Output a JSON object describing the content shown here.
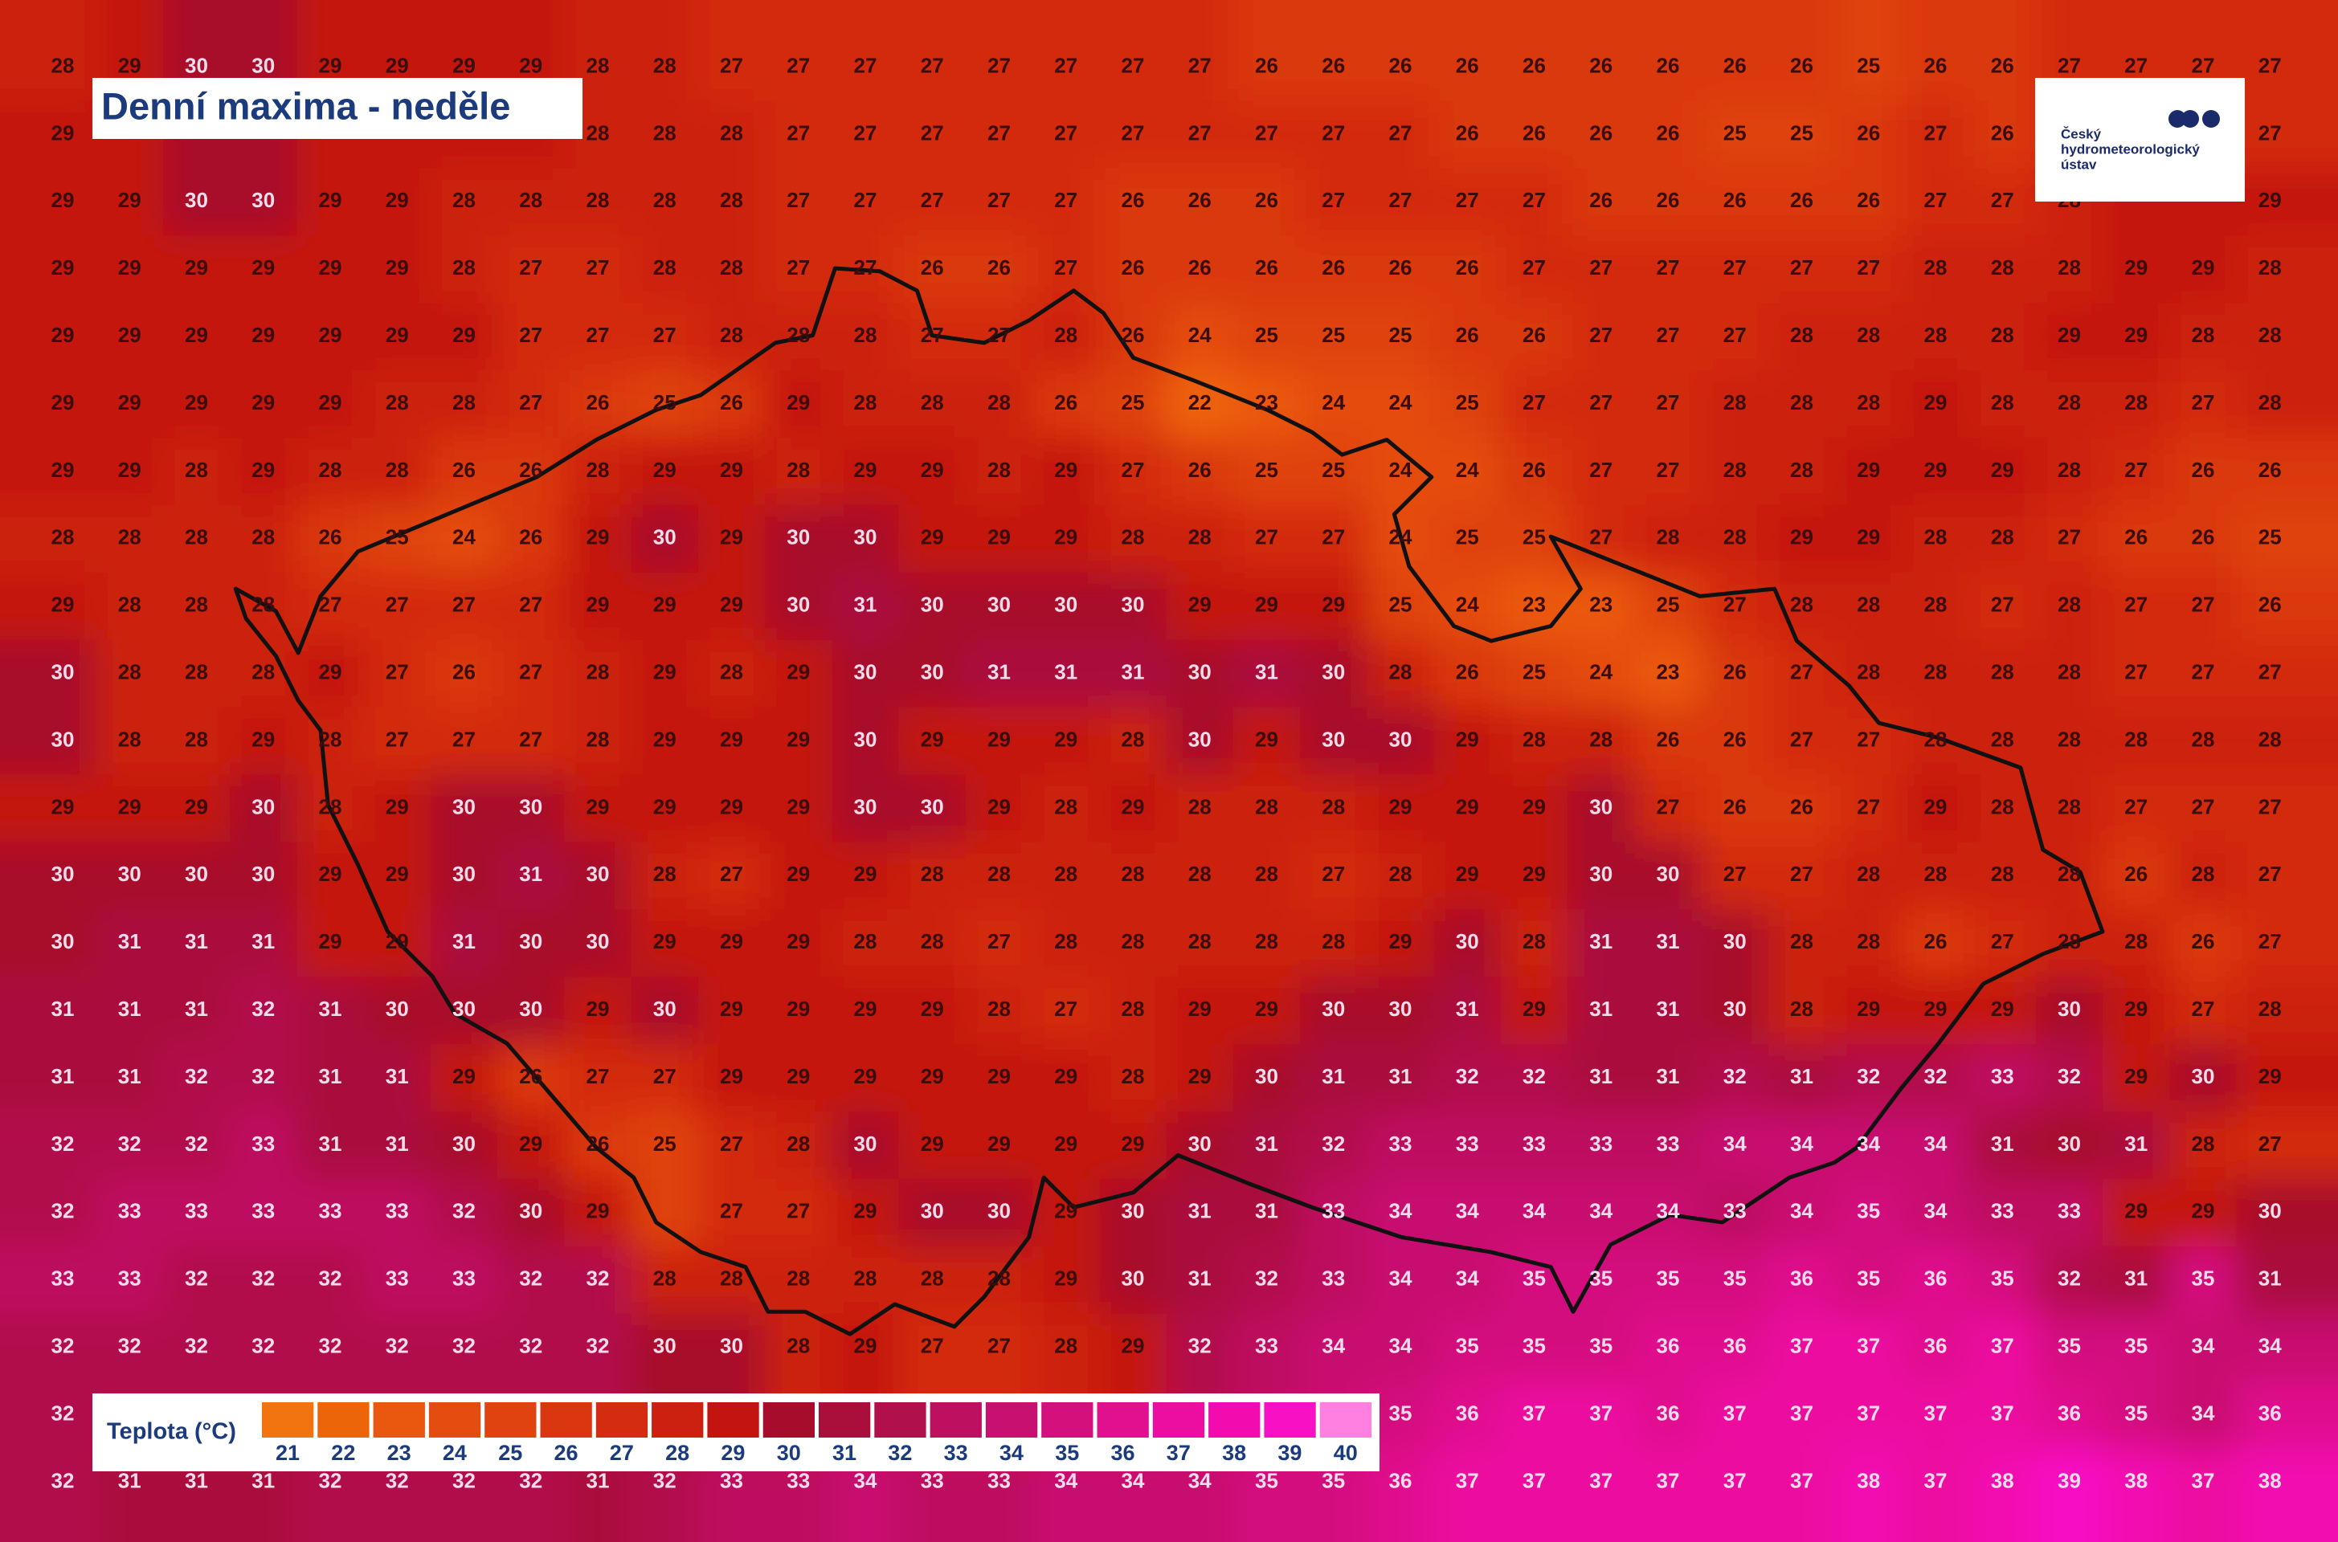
{
  "header": {
    "title": "Denní maxima - neděle"
  },
  "logo": {
    "lines": [
      "Český",
      "hydrometeorologický",
      "ústav"
    ]
  },
  "legend": {
    "title": "Teplota (°C)",
    "items": [
      {
        "value": 21,
        "color": "#f27410"
      },
      {
        "value": 22,
        "color": "#ee6408"
      },
      {
        "value": 23,
        "color": "#ea5810"
      },
      {
        "value": 24,
        "color": "#e54c10"
      },
      {
        "value": 25,
        "color": "#e04210"
      },
      {
        "value": 26,
        "color": "#da3710"
      },
      {
        "value": 27,
        "color": "#d32c10"
      },
      {
        "value": 28,
        "color": "#cc2010"
      },
      {
        "value": 29,
        "color": "#c41410"
      },
      {
        "value": 30,
        "color": "#a80c2c"
      },
      {
        "value": 31,
        "color": "#aa0f3c"
      },
      {
        "value": 32,
        "color": "#b2104c"
      },
      {
        "value": 33,
        "color": "#be1060"
      },
      {
        "value": 34,
        "color": "#c81070"
      },
      {
        "value": 35,
        "color": "#d4107e"
      },
      {
        "value": 36,
        "color": "#e0108e"
      },
      {
        "value": 37,
        "color": "#ec0ea0"
      },
      {
        "value": 38,
        "color": "#f20cb0"
      },
      {
        "value": 39,
        "color": "#f810c4"
      },
      {
        "value": 40,
        "color": "#ff80e0"
      }
    ]
  },
  "map": {
    "grid": {
      "rows": [
        [
          28,
          29,
          30,
          30,
          29,
          29,
          29,
          29,
          28,
          28,
          27,
          27,
          27,
          27,
          27,
          27,
          27,
          27,
          26,
          26,
          26,
          26,
          26,
          26,
          26,
          26,
          26,
          25,
          26,
          26,
          27,
          27,
          27,
          27
        ],
        [
          29,
          null,
          null,
          null,
          null,
          null,
          null,
          null,
          28,
          28,
          28,
          27,
          27,
          27,
          27,
          27,
          27,
          27,
          27,
          27,
          27,
          26,
          26,
          26,
          26,
          25,
          25,
          26,
          27,
          26,
          null,
          null,
          null,
          27
        ],
        [
          29,
          29,
          30,
          30,
          29,
          29,
          28,
          28,
          28,
          28,
          28,
          27,
          27,
          27,
          27,
          27,
          26,
          26,
          26,
          27,
          27,
          27,
          27,
          26,
          26,
          26,
          26,
          26,
          27,
          27,
          28,
          null,
          null,
          29
        ],
        [
          29,
          29,
          29,
          29,
          29,
          29,
          28,
          27,
          27,
          28,
          28,
          27,
          27,
          26,
          26,
          27,
          26,
          26,
          26,
          26,
          26,
          26,
          27,
          27,
          27,
          27,
          27,
          27,
          28,
          28,
          28,
          29,
          29,
          28
        ],
        [
          29,
          29,
          29,
          29,
          29,
          29,
          29,
          27,
          27,
          27,
          28,
          28,
          28,
          27,
          27,
          28,
          26,
          24,
          25,
          25,
          25,
          26,
          26,
          27,
          27,
          27,
          28,
          28,
          28,
          28,
          29,
          29,
          28,
          28
        ],
        [
          29,
          29,
          29,
          29,
          29,
          28,
          28,
          27,
          26,
          25,
          26,
          29,
          28,
          28,
          28,
          26,
          25,
          22,
          23,
          24,
          24,
          25,
          27,
          27,
          27,
          28,
          28,
          28,
          29,
          28,
          28,
          28,
          27,
          28
        ],
        [
          29,
          29,
          28,
          29,
          28,
          28,
          26,
          26,
          28,
          29,
          29,
          28,
          29,
          29,
          28,
          29,
          27,
          26,
          25,
          25,
          24,
          24,
          26,
          27,
          27,
          28,
          28,
          29,
          29,
          29,
          28,
          27,
          26,
          26
        ],
        [
          28,
          28,
          28,
          28,
          26,
          25,
          24,
          26,
          29,
          30,
          29,
          30,
          30,
          29,
          29,
          29,
          28,
          28,
          27,
          27,
          24,
          25,
          25,
          27,
          28,
          28,
          29,
          29,
          28,
          28,
          27,
          26,
          26,
          25
        ],
        [
          29,
          28,
          28,
          28,
          27,
          27,
          27,
          27,
          29,
          29,
          29,
          30,
          31,
          30,
          30,
          30,
          30,
          29,
          29,
          29,
          25,
          24,
          23,
          23,
          25,
          27,
          28,
          28,
          28,
          27,
          28,
          27,
          27,
          26
        ],
        [
          30,
          28,
          28,
          28,
          29,
          27,
          26,
          27,
          28,
          29,
          28,
          29,
          30,
          30,
          31,
          31,
          31,
          30,
          31,
          30,
          28,
          26,
          25,
          24,
          23,
          26,
          27,
          28,
          28,
          28,
          28,
          27,
          27,
          27
        ],
        [
          30,
          28,
          28,
          29,
          28,
          27,
          27,
          27,
          28,
          29,
          29,
          29,
          30,
          29,
          29,
          29,
          28,
          30,
          29,
          30,
          30,
          29,
          28,
          28,
          26,
          26,
          27,
          27,
          28,
          28,
          28,
          28,
          28,
          28
        ],
        [
          29,
          29,
          29,
          30,
          28,
          29,
          30,
          30,
          29,
          29,
          29,
          29,
          30,
          30,
          29,
          28,
          29,
          28,
          28,
          28,
          29,
          29,
          29,
          30,
          27,
          26,
          26,
          27,
          29,
          28,
          28,
          27,
          27,
          27
        ],
        [
          30,
          30,
          30,
          30,
          29,
          29,
          30,
          31,
          30,
          28,
          27,
          29,
          29,
          28,
          28,
          28,
          28,
          28,
          28,
          27,
          28,
          29,
          29,
          30,
          30,
          27,
          27,
          28,
          28,
          28,
          28,
          26,
          28,
          27
        ],
        [
          30,
          31,
          31,
          31,
          29,
          29,
          31,
          30,
          30,
          29,
          29,
          29,
          28,
          28,
          27,
          28,
          28,
          28,
          28,
          28,
          29,
          30,
          28,
          31,
          31,
          30,
          28,
          28,
          26,
          27,
          28,
          28,
          26,
          27
        ],
        [
          31,
          31,
          31,
          32,
          31,
          30,
          30,
          30,
          29,
          30,
          29,
          29,
          29,
          29,
          28,
          27,
          28,
          29,
          29,
          30,
          30,
          31,
          29,
          31,
          31,
          30,
          28,
          29,
          29,
          29,
          30,
          29,
          27,
          28
        ],
        [
          31,
          31,
          32,
          32,
          31,
          31,
          29,
          26,
          27,
          27,
          29,
          29,
          29,
          29,
          29,
          29,
          28,
          29,
          30,
          31,
          31,
          32,
          32,
          31,
          31,
          32,
          31,
          32,
          32,
          33,
          32,
          29,
          30,
          29
        ],
        [
          32,
          32,
          32,
          33,
          31,
          31,
          30,
          29,
          26,
          25,
          27,
          28,
          30,
          29,
          29,
          29,
          29,
          30,
          31,
          32,
          33,
          33,
          33,
          33,
          33,
          34,
          34,
          34,
          34,
          31,
          30,
          31,
          28,
          27
        ],
        [
          32,
          33,
          33,
          33,
          33,
          33,
          32,
          30,
          29,
          null,
          27,
          27,
          29,
          30,
          30,
          29,
          30,
          31,
          31,
          33,
          34,
          34,
          34,
          34,
          34,
          33,
          34,
          35,
          34,
          33,
          33,
          29,
          29,
          30
        ],
        [
          33,
          33,
          32,
          32,
          32,
          33,
          33,
          32,
          32,
          28,
          28,
          28,
          28,
          28,
          28,
          29,
          30,
          31,
          32,
          33,
          34,
          34,
          35,
          35,
          35,
          35,
          36,
          35,
          36,
          35,
          32,
          31,
          35,
          31
        ],
        [
          32,
          32,
          32,
          32,
          32,
          32,
          32,
          32,
          32,
          30,
          30,
          28,
          29,
          27,
          27,
          28,
          29,
          32,
          33,
          34,
          34,
          35,
          35,
          35,
          36,
          36,
          37,
          37,
          36,
          37,
          35,
          35,
          34,
          34
        ],
        [
          32,
          null,
          null,
          null,
          null,
          null,
          null,
          null,
          null,
          null,
          null,
          null,
          null,
          null,
          null,
          null,
          null,
          null,
          null,
          null,
          35,
          36,
          37,
          37,
          36,
          37,
          37,
          37,
          37,
          37,
          36,
          35,
          34,
          36
        ],
        [
          32,
          31,
          31,
          31,
          32,
          32,
          32,
          32,
          31,
          32,
          33,
          33,
          34,
          33,
          33,
          34,
          34,
          34,
          35,
          35,
          36,
          37,
          37,
          37,
          37,
          37,
          37,
          38,
          37,
          38,
          39,
          38,
          37,
          38
        ]
      ]
    }
  }
}
